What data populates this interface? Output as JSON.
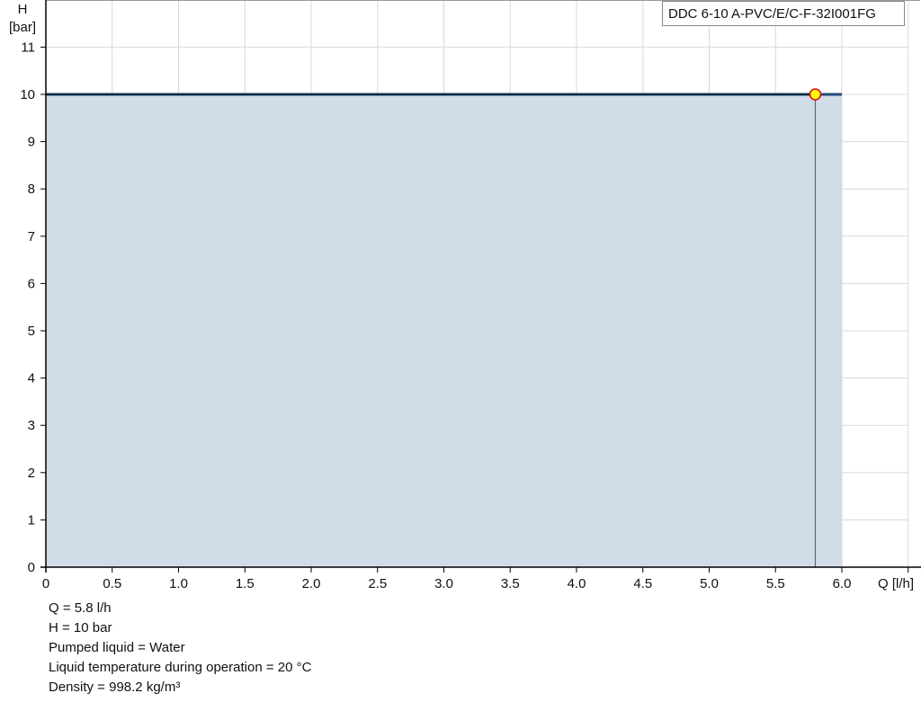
{
  "chart_data": {
    "type": "area",
    "title": "DDC 6-10 A-PVC/E/C-F-32I001FG",
    "xlabel": "Q [l/h]",
    "ylabel_line1": "H",
    "ylabel_line2": "[bar]",
    "xlim": [
      0,
      6.5
    ],
    "ylim": [
      0,
      12
    ],
    "grid": true,
    "x_ticks": [
      "0",
      "0.5",
      "1.0",
      "1.5",
      "2.0",
      "2.5",
      "3.0",
      "3.5",
      "4.0",
      "4.5",
      "5.0",
      "5.5",
      "6.0"
    ],
    "x_tick_values": [
      0,
      0.5,
      1.0,
      1.5,
      2.0,
      2.5,
      3.0,
      3.5,
      4.0,
      4.5,
      5.0,
      5.5,
      6.0
    ],
    "y_ticks": [
      "0",
      "1",
      "2",
      "3",
      "4",
      "5",
      "6",
      "7",
      "8",
      "9",
      "10",
      "11"
    ],
    "y_tick_values": [
      0,
      1,
      2,
      3,
      4,
      5,
      6,
      7,
      8,
      9,
      10,
      11
    ],
    "series": [
      {
        "x": [
          0,
          6.0
        ],
        "y": [
          10,
          10
        ]
      }
    ],
    "operating_point": {
      "x": 5.8,
      "y": 10
    },
    "colors": {
      "curve": "#1f4e79",
      "fill": "#d0dce7",
      "point_fill": "#ffff00",
      "point_stroke": "#e0001b",
      "grid": "#d8d8d8"
    }
  },
  "info": {
    "lines": [
      "Q = 5.8 l/h",
      "H = 10 bar",
      "Pumped liquid = Water",
      "Liquid temperature during operation = 20 °C",
      "Density = 998.2 kg/m³"
    ]
  }
}
